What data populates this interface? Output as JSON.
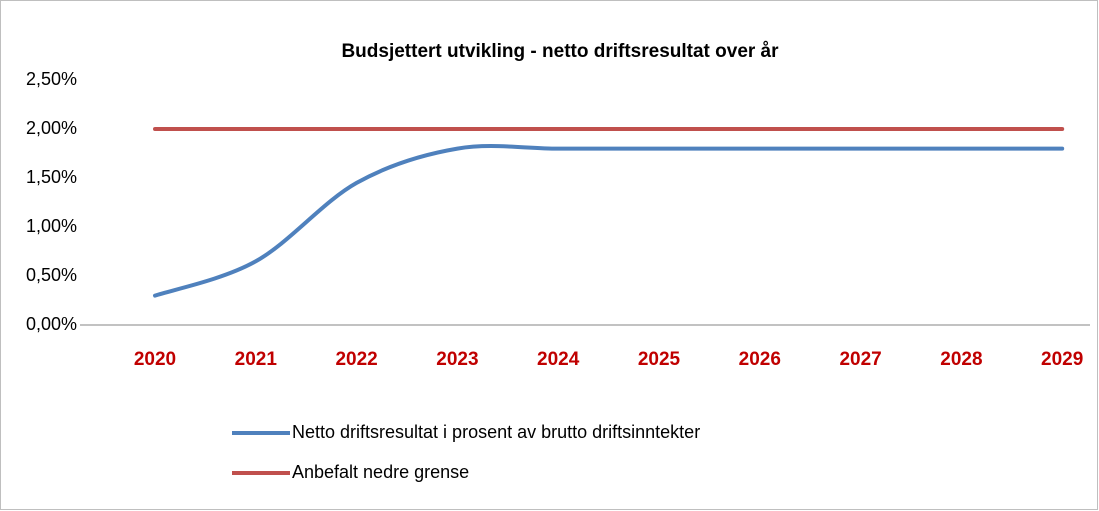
{
  "chart_data": {
    "type": "line",
    "title": "Budsjettert utvikling - netto driftsresultat over år",
    "categories": [
      "2020",
      "2021",
      "2022",
      "2023",
      "2024",
      "2025",
      "2026",
      "2027",
      "2028",
      "2029"
    ],
    "series": [
      {
        "name": "Netto driftsresultat i prosent av brutto driftsinntekter",
        "color": "#4f81bd",
        "values": [
          0.3,
          0.65,
          1.45,
          1.8,
          1.8,
          1.8,
          1.8,
          1.8,
          1.8,
          1.8
        ]
      },
      {
        "name": "Anbefalt nedre grense",
        "color": "#c0504d",
        "values": [
          2.0,
          2.0,
          2.0,
          2.0,
          2.0,
          2.0,
          2.0,
          2.0,
          2.0,
          2.0
        ]
      }
    ],
    "ylim": [
      0,
      2.5
    ],
    "yticks": [
      {
        "value": 0,
        "label": "0,00%"
      },
      {
        "value": 0.5,
        "label": "0,50%"
      },
      {
        "value": 1,
        "label": "1,00%"
      },
      {
        "value": 1.5,
        "label": "1,50%"
      },
      {
        "value": 2,
        "label": "2,00%"
      },
      {
        "value": 2.5,
        "label": "2,50%"
      }
    ],
    "category_color": "#c00000",
    "smooth": true,
    "legend": "bottom"
  }
}
